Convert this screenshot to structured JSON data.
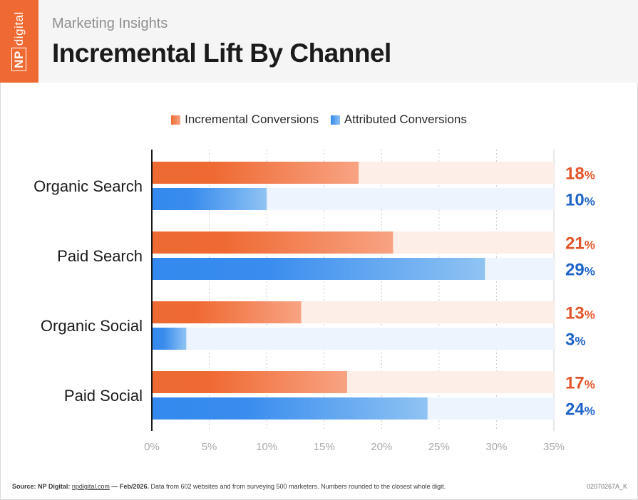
{
  "brand": {
    "logo_prefix": "NP",
    "logo_suffix": "digital"
  },
  "header": {
    "subtitle": "Marketing Insights",
    "title": "Incremental Lift By Channel"
  },
  "colors": {
    "orange": "#ee6a33",
    "orange_light": "#f8a383",
    "blue": "#3389ee",
    "blue_light": "#8fc3f3",
    "orange_label": "#e2552a",
    "blue_label": "#1f63c6",
    "orange_track": "#fdeee8",
    "blue_track": "#edf4fd"
  },
  "chart_data": {
    "type": "bar",
    "orientation": "horizontal",
    "categories": [
      "Organic Search",
      "Paid Search",
      "Organic Social",
      "Paid Social"
    ],
    "series": [
      {
        "name": "Incremental Conversions",
        "values": [
          18,
          21,
          13,
          17
        ]
      },
      {
        "name": "Attributed Conversions",
        "values": [
          10,
          29,
          3,
          24
        ]
      }
    ],
    "value_labels": [
      [
        "18%",
        "21%",
        "13%",
        "17%"
      ],
      [
        "10%",
        "29%",
        "3%",
        "24%"
      ]
    ],
    "xlim": [
      0,
      35
    ],
    "xticks": [
      "0%",
      "5%",
      "10%",
      "15%",
      "20%",
      "25%",
      "30%",
      "35%"
    ],
    "grid": true,
    "legend": "top-center"
  },
  "footer": {
    "source_label": "Source: NP Digital:",
    "source_link": "npdigital.com",
    "source_date": "— Feb/2026.",
    "source_note": "Data from 602 websites and from surveying 500 marketers. Numbers rounded to the closest whole digit.",
    "code": "02070267A_K"
  }
}
